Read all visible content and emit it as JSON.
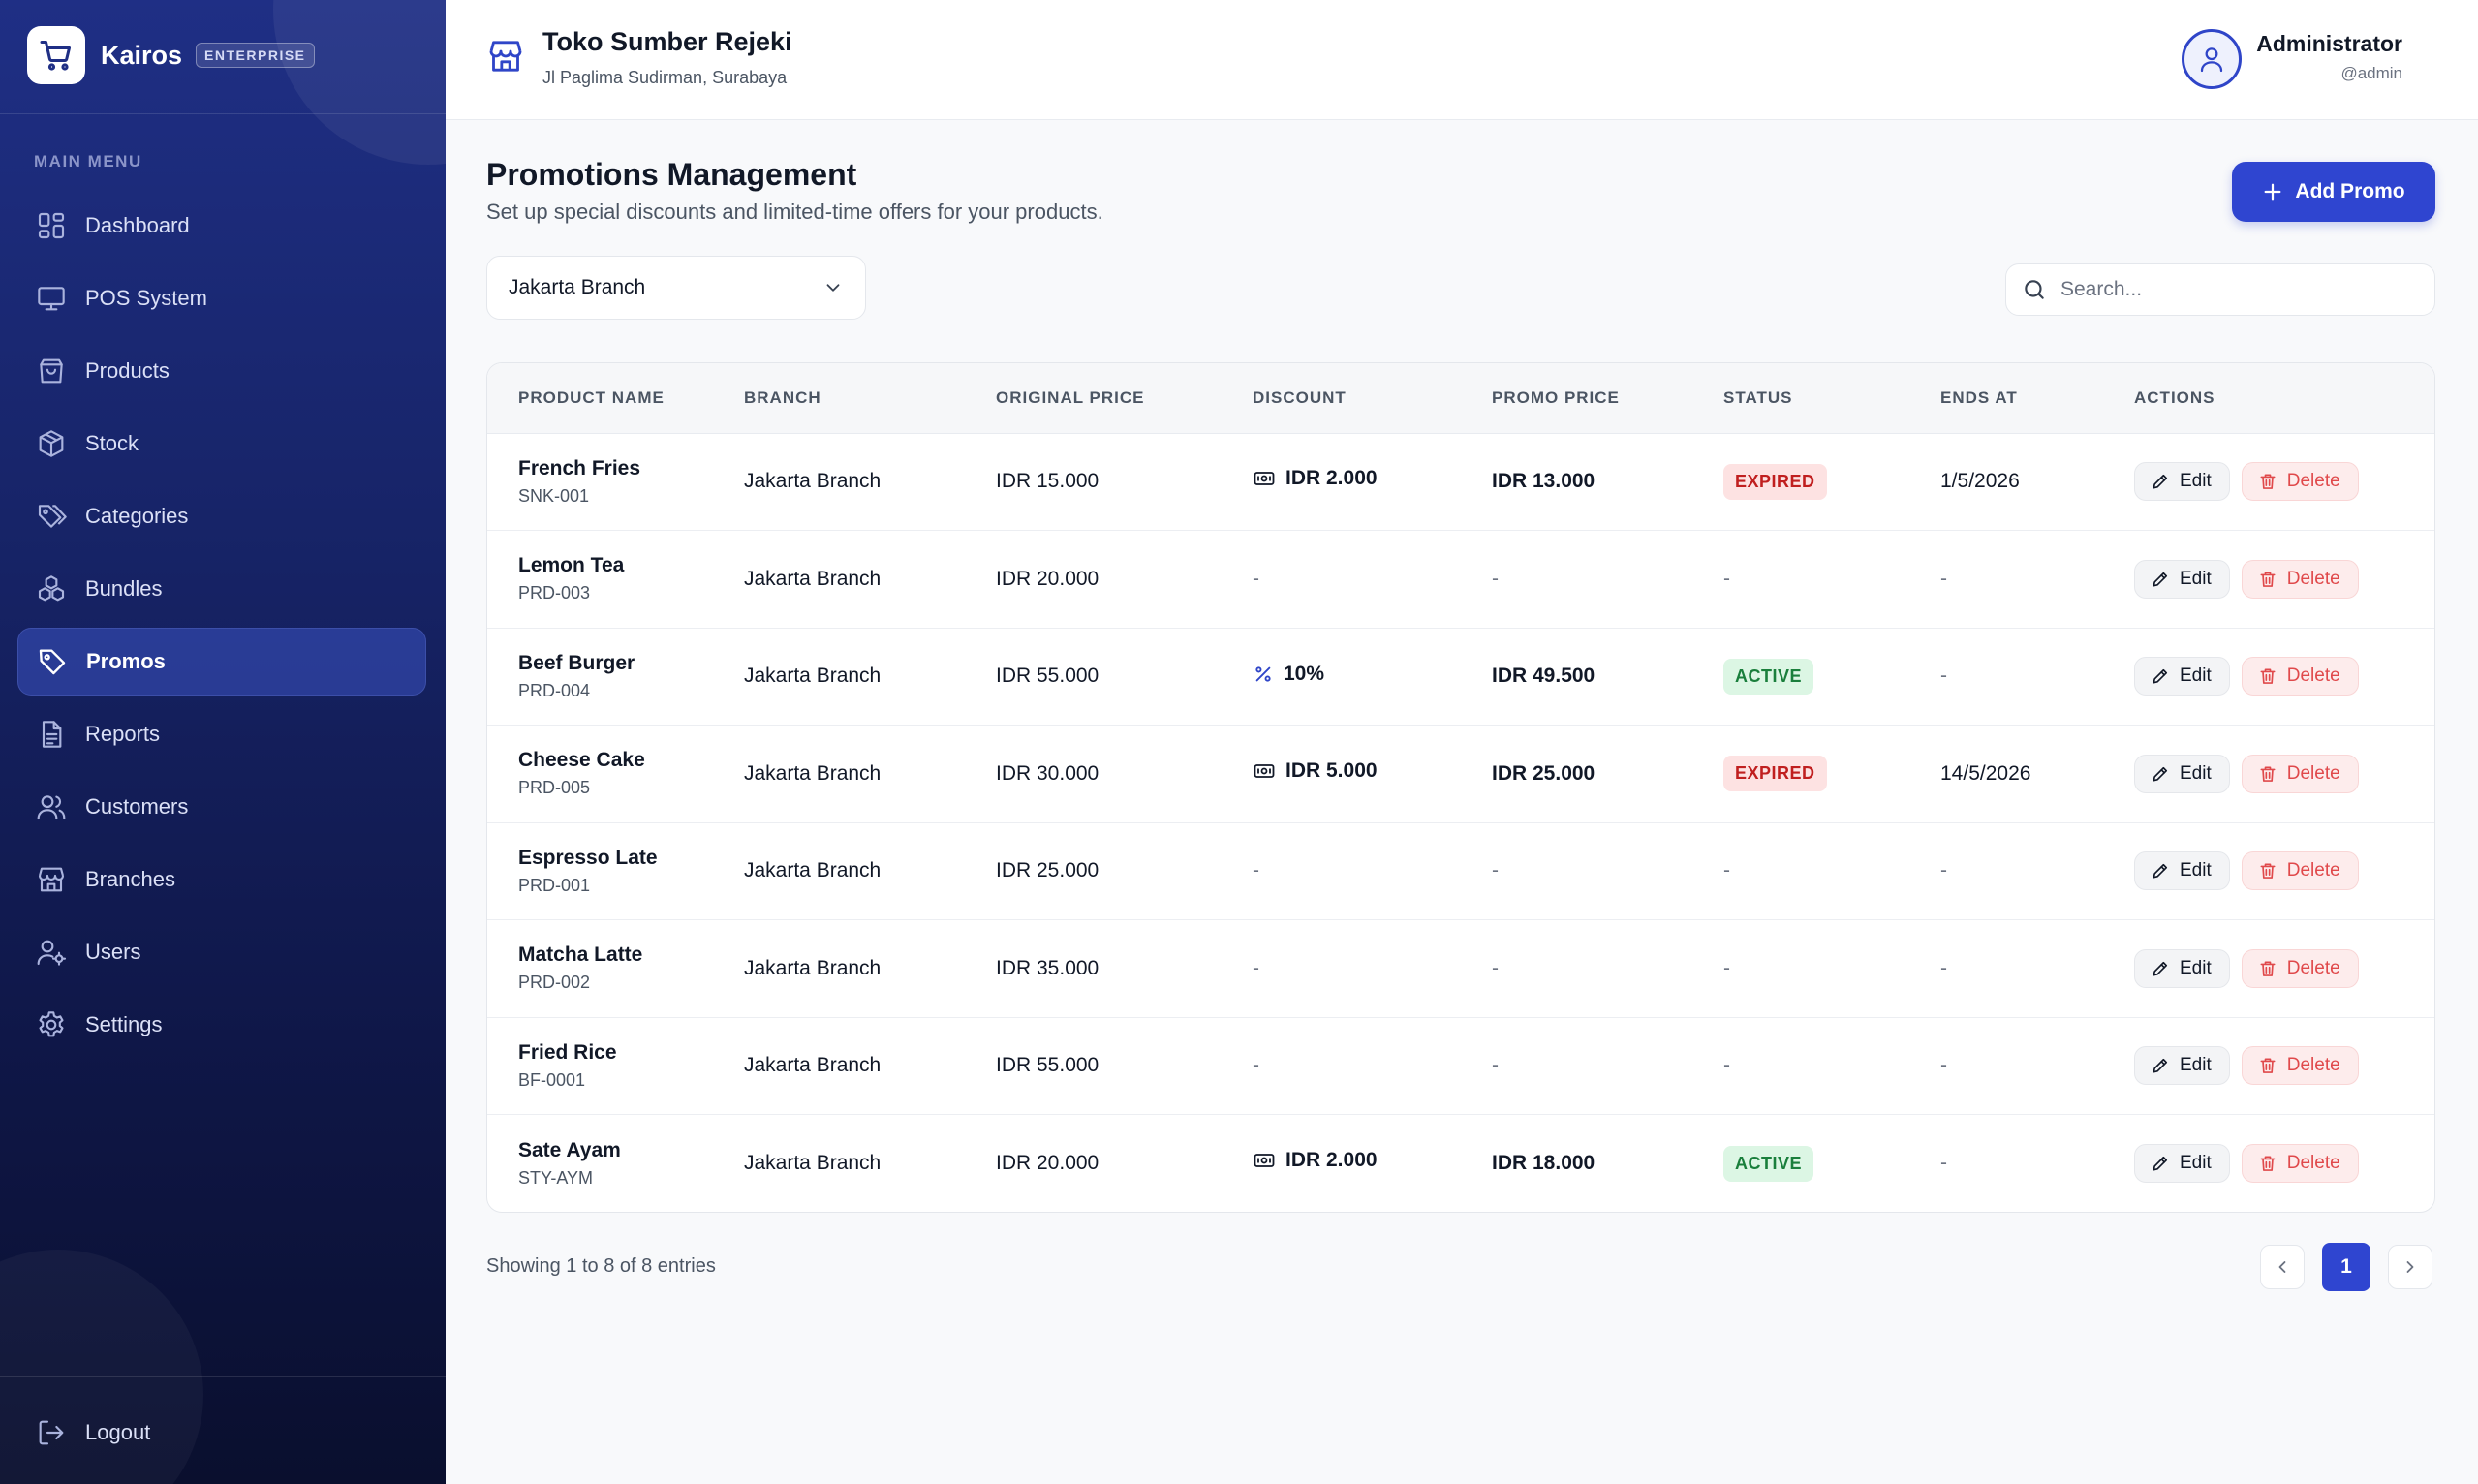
{
  "sidebar": {
    "brand": {
      "name": "Kairos",
      "badge": "ENTERPRISE",
      "logo_icon": "cart-icon"
    },
    "menu_heading": "MAIN MENU",
    "items": [
      {
        "label": "Dashboard",
        "icon": "dashboard-icon",
        "active": false
      },
      {
        "label": "POS System",
        "icon": "monitor-icon",
        "active": false
      },
      {
        "label": "Products",
        "icon": "shopping-bag-icon",
        "active": false
      },
      {
        "label": "Stock",
        "icon": "box-icon",
        "active": false
      },
      {
        "label": "Categories",
        "icon": "tags-icon",
        "active": false
      },
      {
        "label": "Bundles",
        "icon": "boxes-icon",
        "active": false
      },
      {
        "label": "Promos",
        "icon": "tag-icon",
        "active": true
      },
      {
        "label": "Reports",
        "icon": "report-icon",
        "active": false
      },
      {
        "label": "Customers",
        "icon": "users-icon",
        "active": false
      },
      {
        "label": "Branches",
        "icon": "store-icon",
        "active": false
      },
      {
        "label": "Users",
        "icon": "user-cog-icon",
        "active": false
      },
      {
        "label": "Settings",
        "icon": "gear-icon",
        "active": false
      }
    ],
    "logout_label": "Logout"
  },
  "header": {
    "store_name": "Toko Sumber Rejeki",
    "store_address": "Jl Paglima Sudirman, Surabaya",
    "user_name": "Administrator",
    "user_handle": "@admin"
  },
  "main": {
    "title": "Promotions Management",
    "subtitle": "Set up special discounts and limited-time offers for your products.",
    "add_button": "Add Promo",
    "branch_select": "Jakarta Branch",
    "search_placeholder": "Search..."
  },
  "table": {
    "columns": [
      "PRODUCT NAME",
      "BRANCH",
      "ORIGINAL PRICE",
      "DISCOUNT",
      "PROMO PRICE",
      "STATUS",
      "ENDS AT",
      "ACTIONS"
    ],
    "edit_label": "Edit",
    "delete_label": "Delete",
    "rows": [
      {
        "name": "French Fries",
        "sku": "SNK-001",
        "branch": "Jakarta Branch",
        "original": "IDR 15.000",
        "discount": "IDR 2.000",
        "discount_type": "amount",
        "promo": "IDR 13.000",
        "status": "EXPIRED",
        "ends": "1/5/2026"
      },
      {
        "name": "Lemon Tea",
        "sku": "PRD-003",
        "branch": "Jakarta Branch",
        "original": "IDR 20.000",
        "discount": "-",
        "discount_type": "none",
        "promo": "-",
        "status": "-",
        "ends": "-"
      },
      {
        "name": "Beef Burger",
        "sku": "PRD-004",
        "branch": "Jakarta Branch",
        "original": "IDR 55.000",
        "discount": "10%",
        "discount_type": "percent",
        "promo": "IDR 49.500",
        "status": "ACTIVE",
        "ends": "-"
      },
      {
        "name": "Cheese Cake",
        "sku": "PRD-005",
        "branch": "Jakarta Branch",
        "original": "IDR 30.000",
        "discount": "IDR 5.000",
        "discount_type": "amount",
        "promo": "IDR 25.000",
        "status": "EXPIRED",
        "ends": "14/5/2026"
      },
      {
        "name": "Espresso Late",
        "sku": "PRD-001",
        "branch": "Jakarta Branch",
        "original": "IDR 25.000",
        "discount": "-",
        "discount_type": "none",
        "promo": "-",
        "status": "-",
        "ends": "-"
      },
      {
        "name": "Matcha Latte",
        "sku": "PRD-002",
        "branch": "Jakarta Branch",
        "original": "IDR 35.000",
        "discount": "-",
        "discount_type": "none",
        "promo": "-",
        "status": "-",
        "ends": "-"
      },
      {
        "name": "Fried Rice",
        "sku": "BF-0001",
        "branch": "Jakarta Branch",
        "original": "IDR 55.000",
        "discount": "-",
        "discount_type": "none",
        "promo": "-",
        "status": "-",
        "ends": "-"
      },
      {
        "name": "Sate Ayam",
        "sku": "STY-AYM",
        "branch": "Jakarta Branch",
        "original": "IDR 20.000",
        "discount": "IDR 2.000",
        "discount_type": "amount",
        "promo": "IDR 18.000",
        "status": "ACTIVE",
        "ends": "-"
      }
    ]
  },
  "footer": {
    "showing": "Showing 1 to 8 of 8 entries",
    "current_page": "1"
  },
  "colors": {
    "accent": "#2f45d0",
    "sidebar_top": "#1f2f85",
    "sidebar_bottom": "#0a0f2e",
    "expired_bg": "#fde2e2",
    "expired_text": "#c01f1f",
    "active_bg": "#dcf6e4",
    "active_text": "#1a7f3c",
    "delete_text": "#e0494b"
  }
}
